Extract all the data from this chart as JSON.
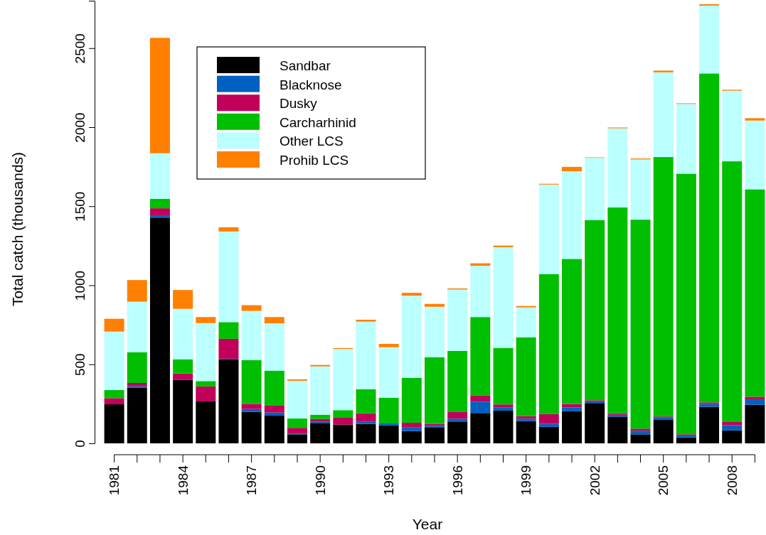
{
  "chart_data": {
    "type": "bar",
    "stacked": true,
    "xlabel": "Year",
    "ylabel": "Total catch (thousands)",
    "categories": [
      "1981",
      null,
      null,
      "1984",
      null,
      null,
      "1987",
      null,
      null,
      "1990",
      null,
      null,
      "1993",
      null,
      null,
      "1996",
      null,
      null,
      "1999",
      null,
      null,
      "2002",
      null,
      null,
      "2005",
      null,
      null,
      "2008",
      null
    ],
    "ylim": [
      0,
      2800
    ],
    "yticks": [
      0,
      500,
      1000,
      1500,
      2000,
      2500
    ],
    "grid": false,
    "legend": "top left",
    "series": [
      {
        "name": "Sandbar",
        "color": "#000000",
        "values": [
          247,
          352,
          1428,
          401,
          265,
          531,
          199,
          175,
          57,
          129,
          118,
          123,
          114,
          78,
          102,
          138,
          192,
          207,
          141,
          104,
          203,
          255,
          169,
          57,
          148,
          38,
          231,
          82,
          244
        ]
      },
      {
        "name": "Blacknose",
        "color": "#0060c0",
        "values": [
          0,
          9,
          15,
          0,
          0,
          4,
          18,
          20,
          5,
          7,
          0,
          13,
          12,
          22,
          9,
          18,
          72,
          21,
          15,
          19,
          24,
          11,
          12,
          23,
          15,
          11,
          18,
          33,
          35
        ]
      },
      {
        "name": "Dusky",
        "color": "#c0005a",
        "values": [
          39,
          21,
          44,
          41,
          95,
          126,
          33,
          43,
          36,
          18,
          47,
          54,
          null,
          30,
          13,
          42,
          40,
          18,
          16,
          62,
          22,
          7,
          10,
          13,
          7,
          8,
          10,
          20,
          16
        ]
      },
      {
        "name": "Carcharhinid",
        "color": "#00bf00",
        "values": [
          51,
          195,
          60,
          90,
          34,
          106,
          276,
          222,
          59,
          27,
          45,
          153,
          163,
          285,
          421,
          387,
          495,
          358,
          499,
          886,
          918,
          1140,
          1301,
          1322,
          1641,
          1649,
          2081,
          1649,
          1312
        ]
      },
      {
        "name": "Other LCS",
        "color": "#bbffff",
        "values": [
          370,
          319,
          288,
          319,
          367,
          573,
          312,
          299,
          239,
          306,
          387,
          427,
          319,
          519,
          319,
          388,
          324,
          637,
          189,
          566,
          554,
          393,
          501,
          381,
          536,
          441,
          429,
          447,
          435
        ]
      },
      {
        "name": "Prohib LCS",
        "color": "#ff8000",
        "values": [
          81,
          137,
          730,
          119,
          38,
          27,
          36,
          40,
          9,
          9,
          6,
          12,
          21,
          18,
          18,
          7,
          16,
          10,
          9,
          5,
          28,
          3,
          5,
          6,
          11,
          4,
          9,
          6,
          15
        ]
      }
    ]
  }
}
